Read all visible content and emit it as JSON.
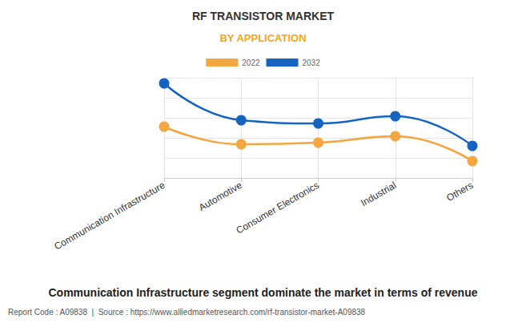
{
  "chart_data": {
    "type": "line",
    "title": "RF TRANSISTOR MARKET",
    "subtitle": "BY APPLICATION",
    "categories": [
      "Communication Infrastructure",
      "Automotive",
      "Consumer Electronics",
      "Industrial",
      "Others"
    ],
    "series": [
      {
        "name": "2022",
        "color": "#f4a641",
        "values": [
          2.56,
          1.68,
          1.76,
          2.08,
          0.84
        ]
      },
      {
        "name": "2032",
        "color": "#1565c0",
        "values": [
          4.72,
          2.88,
          2.72,
          3.08,
          1.6
        ]
      }
    ],
    "ylim": [
      0,
      5
    ],
    "yticks": [
      0,
      1,
      2,
      3,
      4,
      5
    ],
    "grid": true,
    "tick_labels": "x",
    "legend": "top",
    "marker": "circle",
    "line_style": "solid",
    "annotations": [
      "Communication Infrastructure segment dominate the market in terms of revenue",
      "Report Code : A09838  |  Source : https://www.alliedmarketresearch.com/rf-transistor-market-A09838"
    ]
  }
}
